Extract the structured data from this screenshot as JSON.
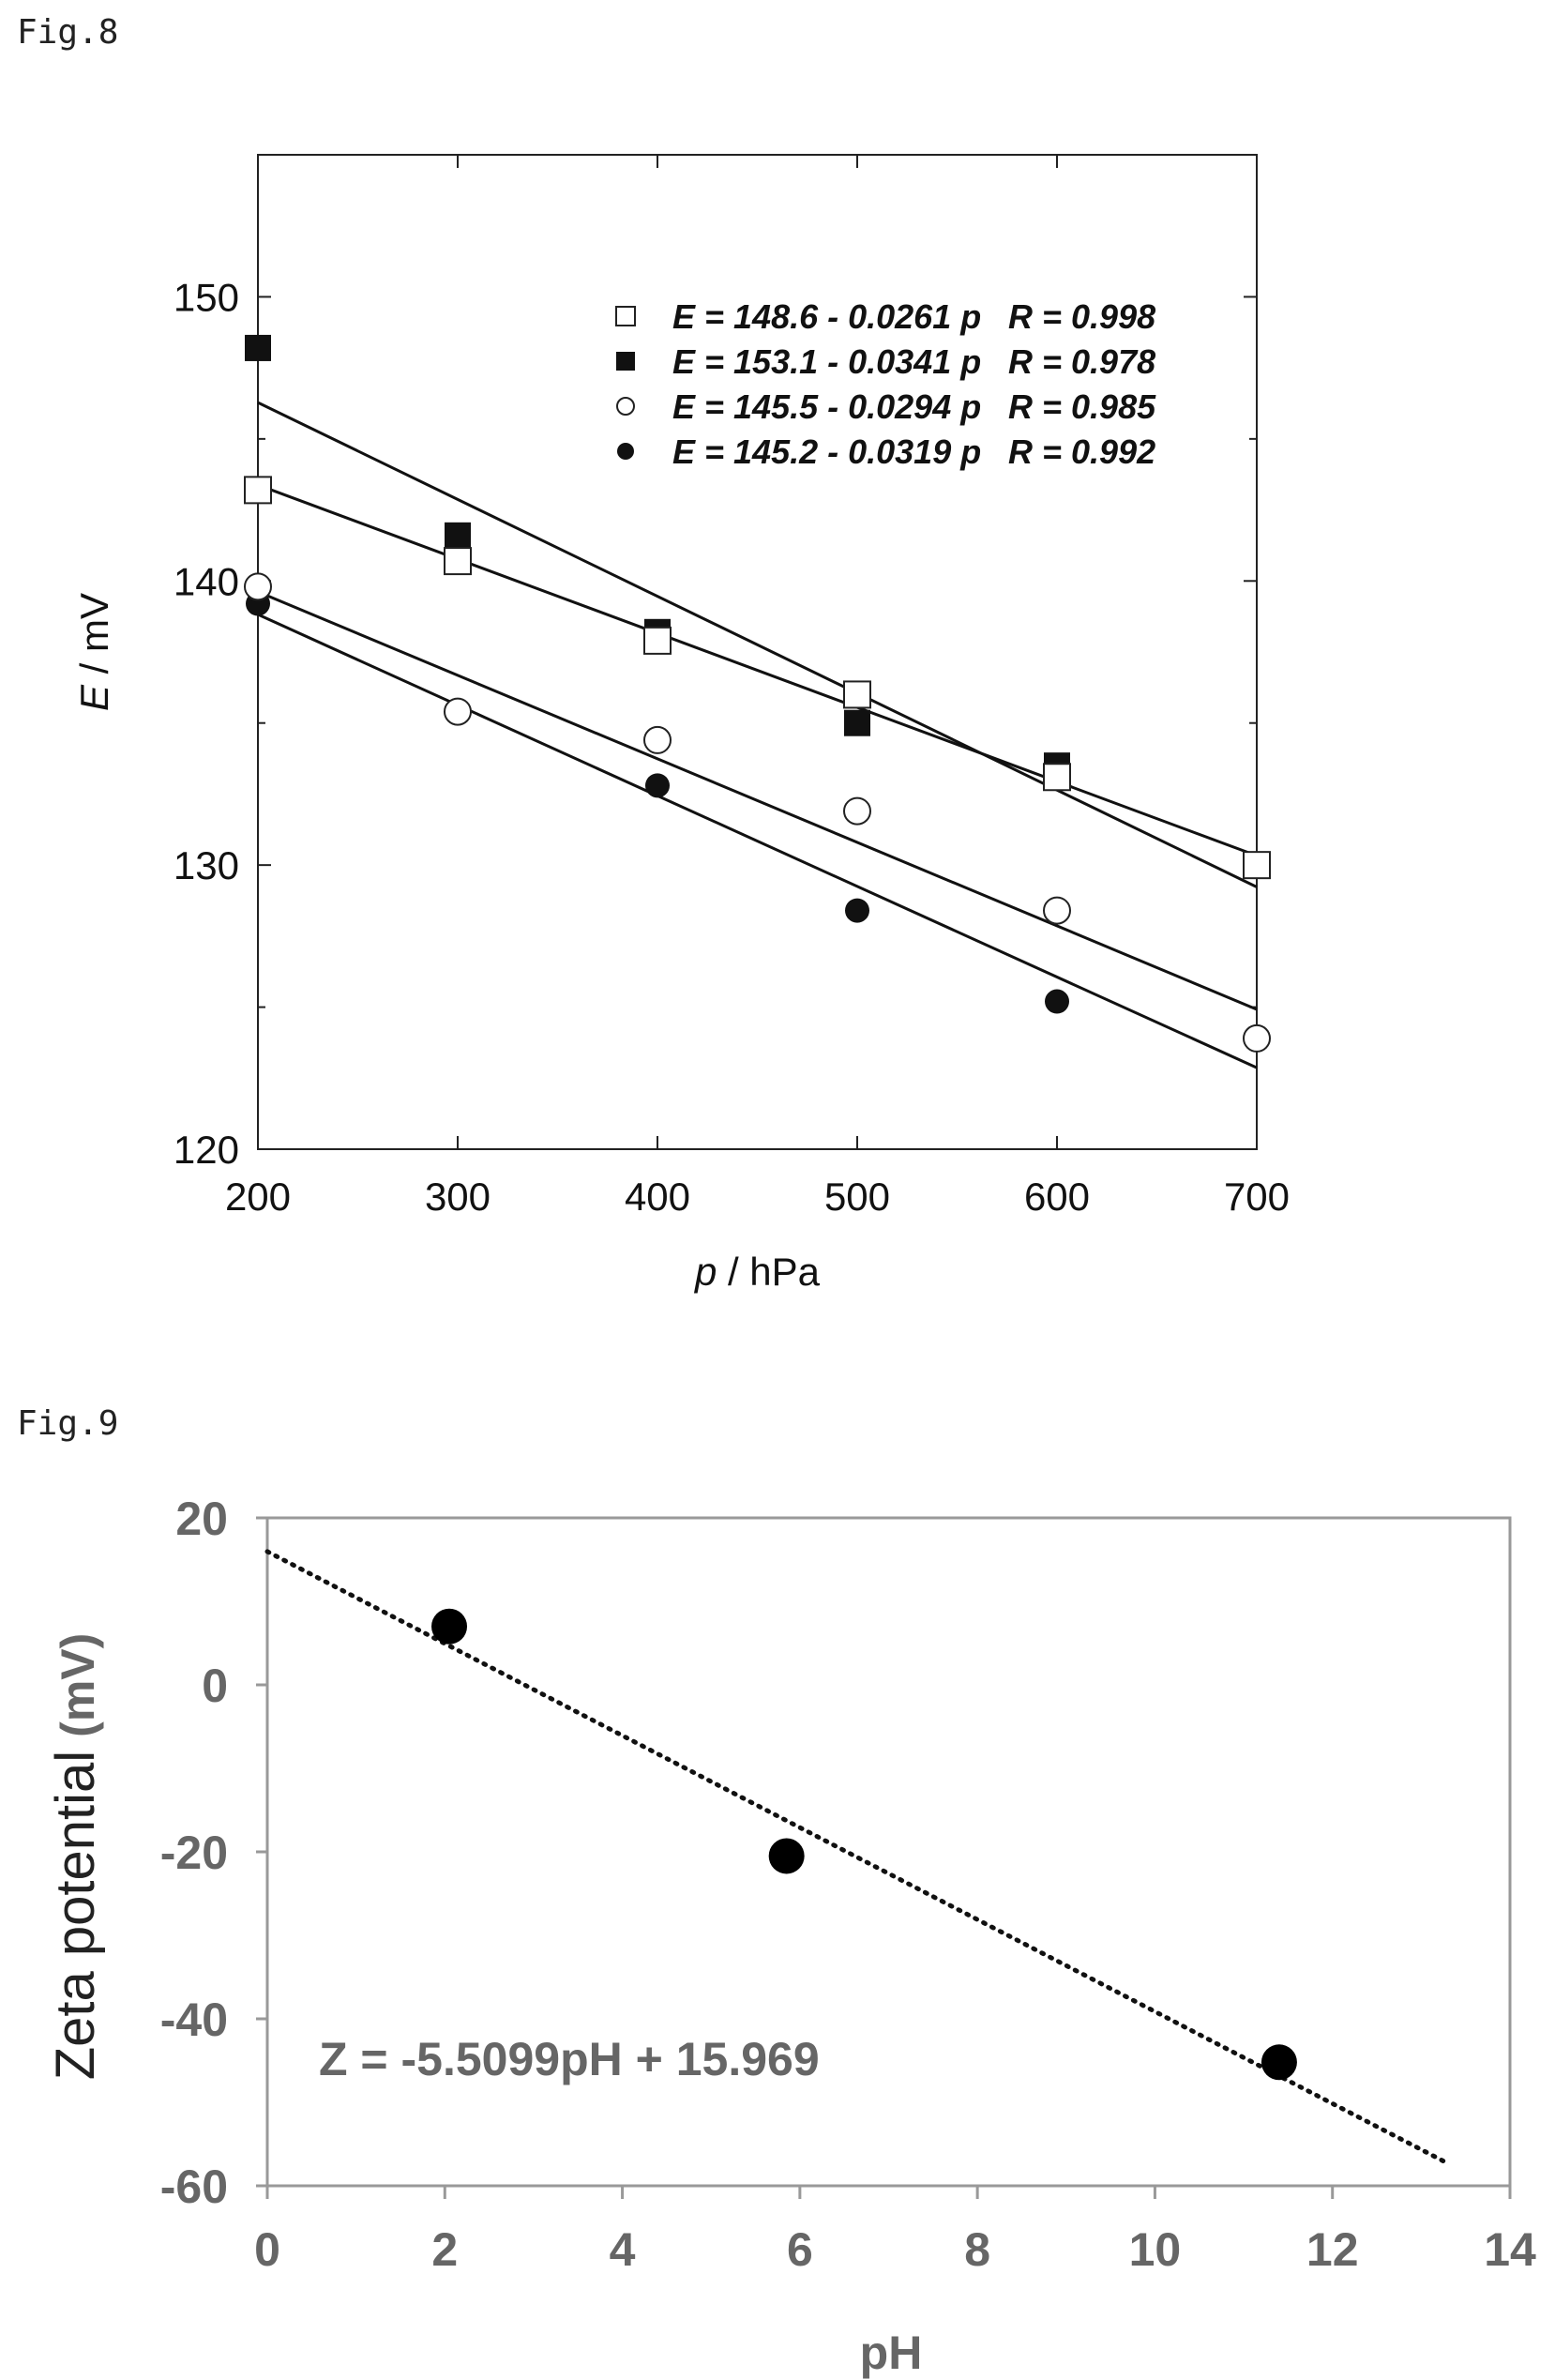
{
  "figures": {
    "fig8_label": "Fig.8",
    "fig9_label": "Fig.9"
  },
  "chart_data": [
    {
      "type": "scatter",
      "figure": "Fig.8",
      "xlabel_var": "p",
      "xlabel_unit": " / hPa",
      "ylabel_var": "E",
      "ylabel_unit": " / mV",
      "xlim": [
        200,
        700
      ],
      "ylim": [
        120,
        155
      ],
      "xticks": [
        "200",
        "300",
        "400",
        "500",
        "600",
        "700"
      ],
      "yticks": [
        "120",
        "130",
        "140",
        "150"
      ],
      "xtick_values": [
        200,
        300,
        400,
        500,
        600,
        700
      ],
      "ytick_values": [
        120,
        130,
        140,
        150
      ],
      "grid": false,
      "legend_position": "top-right",
      "series": [
        {
          "marker": "open-square",
          "x": [
            200,
            300,
            400,
            500,
            600,
            700
          ],
          "y": [
            143.2,
            140.7,
            137.9,
            136.0,
            133.1,
            130.0
          ],
          "fit": {
            "intercept": 148.6,
            "slope": -0.0261
          },
          "legend_eq": "E = 148.6 - 0.0261 p",
          "legend_r": "R = 0.998"
        },
        {
          "marker": "filled-square",
          "x": [
            200,
            300,
            400,
            500,
            600
          ],
          "y": [
            148.2,
            141.6,
            138.2,
            135.0,
            133.5
          ],
          "fit": {
            "intercept": 153.1,
            "slope": -0.0341
          },
          "legend_eq": "E = 153.1 - 0.0341 p",
          "legend_r": "R = 0.978"
        },
        {
          "marker": "open-circle",
          "x": [
            200,
            300,
            400,
            500,
            600,
            700
          ],
          "y": [
            139.8,
            135.4,
            134.4,
            131.9,
            128.4,
            123.9
          ],
          "fit": {
            "intercept": 145.5,
            "slope": -0.0294
          },
          "legend_eq": "E = 145.5 - 0.0294 p",
          "legend_r": "R = 0.985"
        },
        {
          "marker": "filled-circle",
          "x": [
            200,
            400,
            500,
            600
          ],
          "y": [
            139.2,
            132.8,
            128.4,
            125.2
          ],
          "fit": {
            "intercept": 145.2,
            "slope": -0.0319
          },
          "legend_eq": "E = 145.2 - 0.0319 p",
          "legend_r": "R = 0.992"
        }
      ]
    },
    {
      "type": "scatter",
      "figure": "Fig.9",
      "xlabel": "pH",
      "ylabel": "Zeta potential",
      "ylabel_unit": "(mV)",
      "xlim": [
        0,
        14
      ],
      "ylim": [
        -60,
        20
      ],
      "xticks": [
        "0",
        "2",
        "4",
        "6",
        "8",
        "10",
        "12",
        "14"
      ],
      "yticks": [
        "-60",
        "-40",
        "-20",
        "0",
        "20"
      ],
      "xtick_values": [
        0,
        2,
        4,
        6,
        8,
        10,
        12,
        14
      ],
      "ytick_values": [
        -60,
        -40,
        -20,
        0,
        20
      ],
      "grid": false,
      "series": [
        {
          "marker": "filled-circle",
          "x": [
            2.05,
            5.85,
            11.4
          ],
          "y": [
            7.0,
            -20.5,
            -45.2
          ]
        }
      ],
      "trendline": {
        "slope": -5.5099,
        "intercept": 15.969,
        "x_range": [
          0,
          13.3
        ],
        "style": "dotted"
      },
      "annotation": "Z = -5.5099pH + 15.969"
    }
  ]
}
